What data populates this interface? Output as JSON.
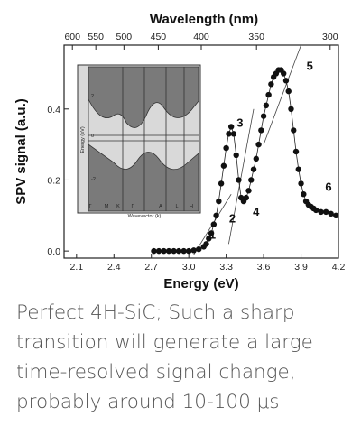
{
  "caption": "Perfect 4H-SiC; Such a sharp\ntransition will generate a large\ntime-resolved signal change,\nprobably around 10-100 μs",
  "chart_data": {
    "type": "scatter",
    "xlabel": "Energy (eV)",
    "ylabel": "SPV signal (a.u.)",
    "x2label": "Wavelength (nm)",
    "xlim": [
      2.0,
      4.2
    ],
    "ylim": [
      -0.02,
      0.58
    ],
    "xticks": [
      2.1,
      2.4,
      2.7,
      3.0,
      3.3,
      3.6,
      3.9,
      4.2
    ],
    "xtick_labels": [
      "2.1",
      "2.4",
      "2.7",
      "3.0",
      "3.3",
      "3.6",
      "3.9",
      "4.2"
    ],
    "yticks": [
      0.0,
      0.2,
      0.4
    ],
    "ytick_labels": [
      "0.0",
      "0.2",
      "0.4"
    ],
    "top_ticks_nm": [
      600,
      550,
      500,
      450,
      400,
      350,
      300
    ],
    "top_tick_labels": [
      "600",
      "550",
      "500",
      "450",
      "400",
      "350",
      "300"
    ],
    "series": [
      {
        "x": [
          2.72,
          2.76,
          2.8,
          2.84,
          2.88,
          2.92,
          2.96,
          3.0,
          3.04,
          3.08,
          3.12,
          3.14,
          3.16,
          3.18,
          3.2,
          3.22,
          3.24,
          3.26,
          3.28,
          3.3,
          3.32,
          3.34,
          3.36,
          3.38,
          3.4,
          3.42,
          3.44,
          3.46,
          3.48,
          3.5,
          3.52,
          3.54,
          3.56,
          3.58,
          3.6,
          3.62,
          3.64,
          3.66,
          3.68,
          3.7,
          3.72,
          3.74,
          3.76,
          3.78,
          3.8,
          3.82,
          3.84,
          3.86,
          3.88,
          3.9,
          3.92,
          3.94,
          3.96,
          3.98,
          4.0,
          4.02,
          4.06,
          4.1,
          4.14,
          4.18
        ],
        "y": [
          0.0,
          0.0,
          0.0,
          0.0,
          0.0,
          0.0,
          0.0,
          0.0,
          0.002,
          0.005,
          0.012,
          0.02,
          0.035,
          0.05,
          0.075,
          0.1,
          0.14,
          0.19,
          0.24,
          0.29,
          0.33,
          0.35,
          0.33,
          0.27,
          0.2,
          0.15,
          0.14,
          0.15,
          0.17,
          0.2,
          0.23,
          0.26,
          0.3,
          0.34,
          0.38,
          0.41,
          0.44,
          0.47,
          0.49,
          0.5,
          0.51,
          0.51,
          0.5,
          0.48,
          0.45,
          0.4,
          0.34,
          0.28,
          0.23,
          0.19,
          0.16,
          0.14,
          0.13,
          0.125,
          0.12,
          0.115,
          0.11,
          0.11,
          0.105,
          0.1
        ]
      }
    ],
    "peak_labels": [
      {
        "text": "1",
        "x": 3.19,
        "y": 0.035
      },
      {
        "text": "2",
        "x": 3.35,
        "y": 0.08
      },
      {
        "text": "3",
        "x": 3.41,
        "y": 0.35
      },
      {
        "text": "4",
        "x": 3.54,
        "y": 0.1
      },
      {
        "text": "5",
        "x": 3.97,
        "y": 0.51
      },
      {
        "text": "6",
        "x": 4.12,
        "y": 0.17
      }
    ],
    "inset_labels": [
      "Γ",
      "M",
      "K",
      "Γ",
      "A",
      "L",
      "H",
      "Wavevector (k)",
      "Energy (eV)",
      "0",
      "2",
      "-2"
    ]
  }
}
